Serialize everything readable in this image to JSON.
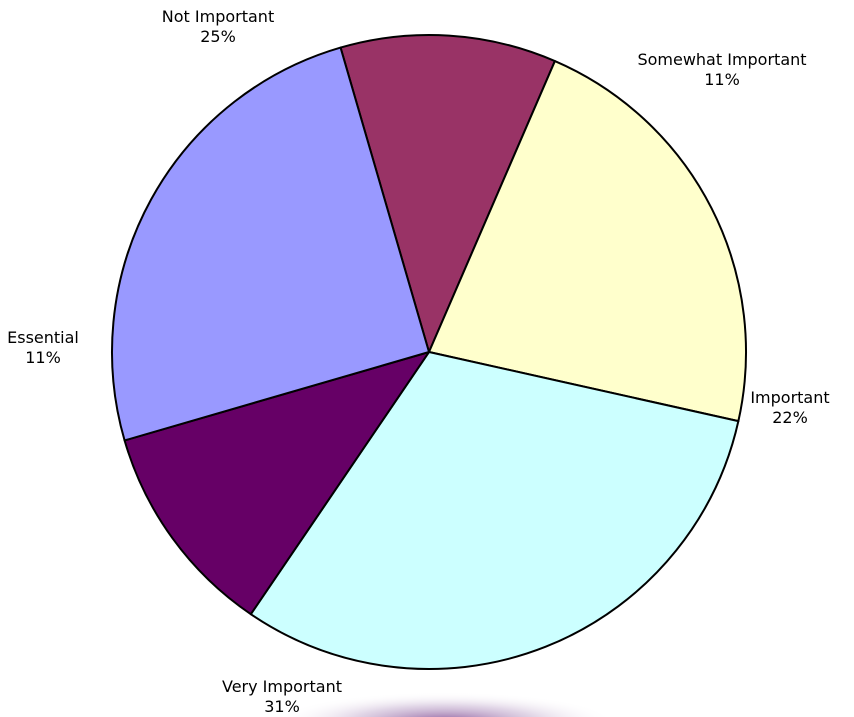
{
  "chart_data": {
    "type": "pie",
    "title": "",
    "start_angle_deg": 253.8,
    "direction": "clockwise",
    "slices": [
      {
        "label": "Somewhat Important",
        "percent_label": "11%",
        "value": 11,
        "color": "#993366"
      },
      {
        "label": "Important",
        "percent_label": "22%",
        "value": 22,
        "color": "#ffffcc"
      },
      {
        "label": "Very Important",
        "percent_label": "31%",
        "value": 31,
        "color": "#ccffff"
      },
      {
        "label": "Essential",
        "percent_label": "11%",
        "value": 11,
        "color": "#660066"
      },
      {
        "label": "Not Important",
        "percent_label": "25%",
        "value": 25,
        "color": "#9999ff"
      }
    ],
    "slice_border_color": "#000000",
    "background_color": "#ffffff",
    "legend": "none"
  }
}
